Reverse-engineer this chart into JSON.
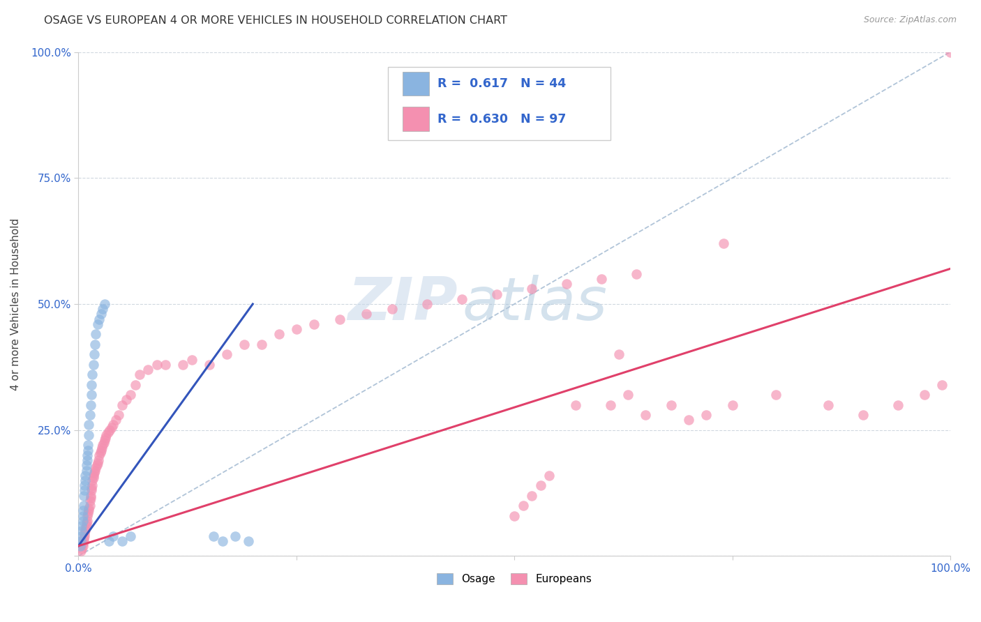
{
  "title": "OSAGE VS EUROPEAN 4 OR MORE VEHICLES IN HOUSEHOLD CORRELATION CHART",
  "source": "Source: ZipAtlas.com",
  "ylabel": "4 or more Vehicles in Household",
  "xlim": [
    0,
    1
  ],
  "ylim": [
    0,
    1
  ],
  "xticks": [
    0,
    0.25,
    0.5,
    0.75,
    1.0
  ],
  "yticks": [
    0,
    0.25,
    0.5,
    0.75,
    1.0
  ],
  "xticklabels": [
    "0.0%",
    "",
    "",
    "",
    "100.0%"
  ],
  "yticklabels": [
    "",
    "25.0%",
    "50.0%",
    "75.0%",
    "100.0%"
  ],
  "legend_labels": [
    "Osage",
    "Europeans"
  ],
  "osage_R": "0.617",
  "osage_N": "44",
  "european_R": "0.630",
  "european_N": "97",
  "osage_color": "#8ab4e0",
  "european_color": "#f490b0",
  "osage_line_color": "#3355bb",
  "european_line_color": "#e0406a",
  "diagonal_color": "#b0c4d8",
  "background_color": "#ffffff",
  "watermark_zip": "ZIP",
  "watermark_atlas": "atlas",
  "osage_line_x": [
    0.0,
    0.2
  ],
  "osage_line_y": [
    0.02,
    0.5
  ],
  "european_line_x": [
    0.0,
    1.0
  ],
  "european_line_y": [
    0.02,
    0.57
  ],
  "osage_x": [
    0.002,
    0.003,
    0.003,
    0.004,
    0.004,
    0.005,
    0.005,
    0.005,
    0.006,
    0.006,
    0.007,
    0.007,
    0.008,
    0.008,
    0.009,
    0.009,
    0.01,
    0.01,
    0.011,
    0.011,
    0.012,
    0.012,
    0.013,
    0.014,
    0.015,
    0.015,
    0.016,
    0.017,
    0.018,
    0.019,
    0.02,
    0.022,
    0.024,
    0.026,
    0.028,
    0.03,
    0.035,
    0.04,
    0.05,
    0.06,
    0.155,
    0.165,
    0.18,
    0.195
  ],
  "osage_y": [
    0.02,
    0.03,
    0.04,
    0.05,
    0.06,
    0.07,
    0.08,
    0.09,
    0.1,
    0.12,
    0.13,
    0.14,
    0.15,
    0.16,
    0.17,
    0.18,
    0.19,
    0.2,
    0.21,
    0.22,
    0.24,
    0.26,
    0.28,
    0.3,
    0.32,
    0.34,
    0.36,
    0.38,
    0.4,
    0.42,
    0.44,
    0.46,
    0.47,
    0.48,
    0.49,
    0.5,
    0.03,
    0.04,
    0.03,
    0.04,
    0.04,
    0.03,
    0.04,
    0.03
  ],
  "european_x": [
    0.003,
    0.004,
    0.005,
    0.005,
    0.006,
    0.006,
    0.007,
    0.007,
    0.008,
    0.008,
    0.009,
    0.009,
    0.01,
    0.01,
    0.011,
    0.012,
    0.012,
    0.013,
    0.013,
    0.014,
    0.014,
    0.015,
    0.015,
    0.016,
    0.016,
    0.017,
    0.017,
    0.018,
    0.019,
    0.02,
    0.021,
    0.022,
    0.023,
    0.024,
    0.025,
    0.026,
    0.027,
    0.028,
    0.029,
    0.03,
    0.031,
    0.032,
    0.034,
    0.036,
    0.038,
    0.04,
    0.043,
    0.046,
    0.05,
    0.055,
    0.06,
    0.065,
    0.07,
    0.08,
    0.09,
    0.1,
    0.12,
    0.13,
    0.15,
    0.17,
    0.19,
    0.21,
    0.23,
    0.25,
    0.27,
    0.3,
    0.33,
    0.36,
    0.4,
    0.44,
    0.48,
    0.52,
    0.56,
    0.6,
    0.64,
    0.5,
    0.51,
    0.52,
    0.53,
    0.54,
    0.61,
    0.63,
    0.65,
    0.68,
    0.7,
    0.72,
    0.75,
    0.8,
    0.86,
    0.9,
    0.94,
    0.97,
    0.99,
    1.0,
    0.74,
    0.62,
    0.57
  ],
  "european_y": [
    0.01,
    0.015,
    0.02,
    0.025,
    0.03,
    0.035,
    0.04,
    0.045,
    0.05,
    0.055,
    0.06,
    0.065,
    0.07,
    0.08,
    0.085,
    0.09,
    0.095,
    0.1,
    0.11,
    0.115,
    0.12,
    0.13,
    0.135,
    0.14,
    0.15,
    0.155,
    0.16,
    0.165,
    0.17,
    0.175,
    0.18,
    0.185,
    0.19,
    0.2,
    0.205,
    0.21,
    0.215,
    0.22,
    0.225,
    0.23,
    0.235,
    0.24,
    0.245,
    0.25,
    0.255,
    0.26,
    0.27,
    0.28,
    0.3,
    0.31,
    0.32,
    0.34,
    0.36,
    0.37,
    0.38,
    0.38,
    0.38,
    0.39,
    0.38,
    0.4,
    0.42,
    0.42,
    0.44,
    0.45,
    0.46,
    0.47,
    0.48,
    0.49,
    0.5,
    0.51,
    0.52,
    0.53,
    0.54,
    0.55,
    0.56,
    0.08,
    0.1,
    0.12,
    0.14,
    0.16,
    0.3,
    0.32,
    0.28,
    0.3,
    0.27,
    0.28,
    0.3,
    0.32,
    0.3,
    0.28,
    0.3,
    0.32,
    0.34,
    1.0,
    0.62,
    0.4,
    0.3
  ]
}
